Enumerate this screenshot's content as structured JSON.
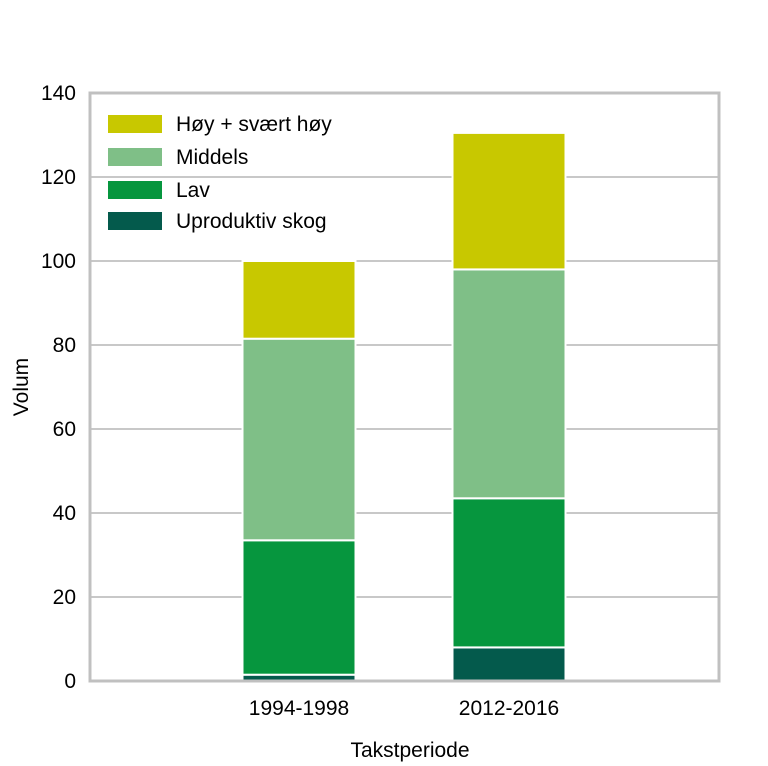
{
  "chart_data": {
    "type": "bar",
    "stacked": true,
    "title": "",
    "xlabel": "Takstperiode",
    "ylabel": "Volum",
    "categories": [
      "1994-1998",
      "2012-2016"
    ],
    "ylim": [
      0,
      140
    ],
    "yticks": [
      0,
      20,
      40,
      60,
      80,
      100,
      120,
      140
    ],
    "grid": true,
    "legend_position": "top-left",
    "series": [
      {
        "name": "Uproduktiv skog",
        "color": "#045a4c",
        "values": [
          1.5,
          8
        ]
      },
      {
        "name": "Lav",
        "color": "#06963e",
        "values": [
          32,
          35.5
        ]
      },
      {
        "name": "Middels",
        "color": "#7fbf87",
        "values": [
          48,
          54.5
        ]
      },
      {
        "name": "Høy + svært høy",
        "color": "#c8c800",
        "values": [
          18.5,
          32.5
        ]
      }
    ]
  }
}
